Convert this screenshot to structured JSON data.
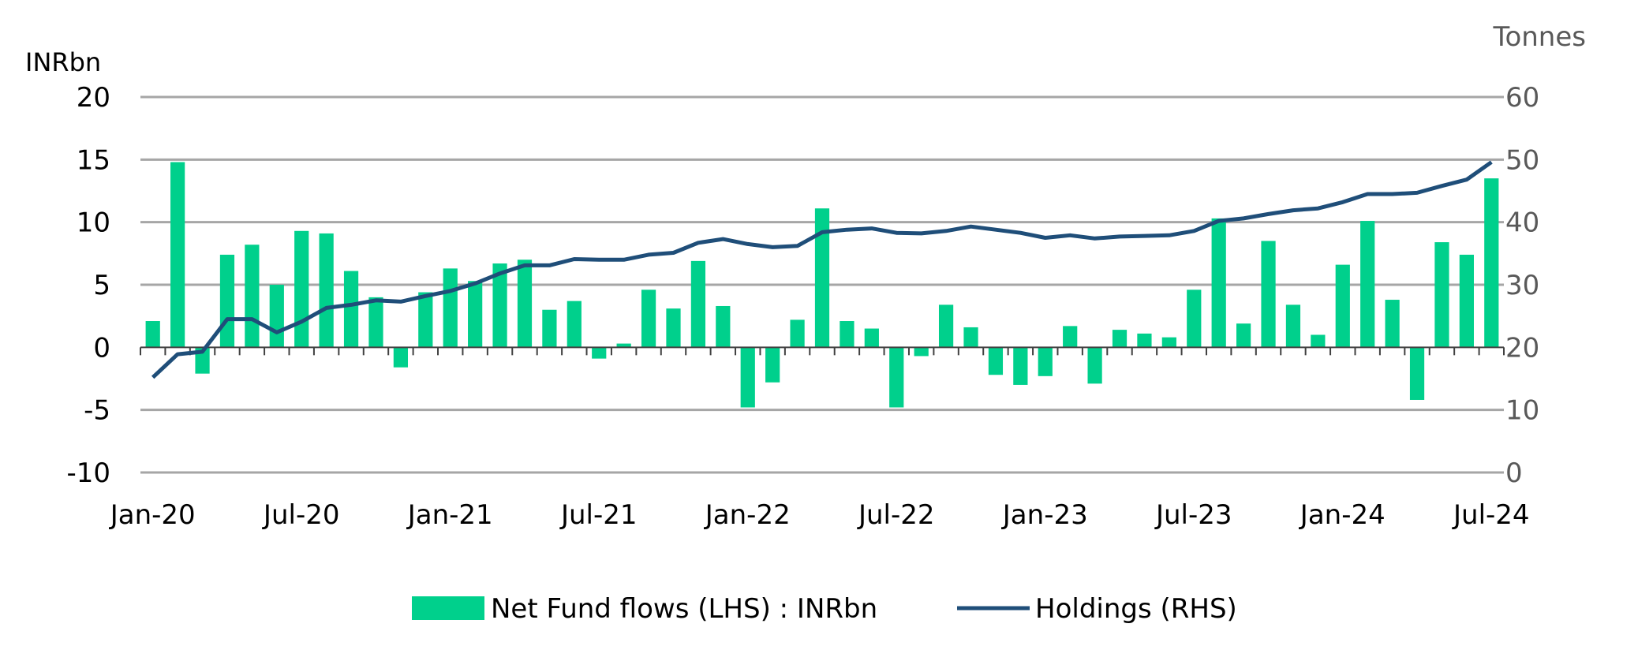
{
  "chart_data": {
    "type": "bar+line",
    "y_left_unit": "INRbn",
    "y_right_unit": "Tonnes",
    "y_left_ticks": [
      "20",
      "15",
      "10",
      "5",
      "0",
      "-5",
      "-10"
    ],
    "y_right_ticks": [
      "60",
      "50",
      "40",
      "30",
      "20",
      "10",
      "0"
    ],
    "ylim_left": [
      -10,
      20
    ],
    "ylim_right": [
      0,
      60
    ],
    "x_tick_labels": [
      "Jan-20",
      "Jul-20",
      "Jan-21",
      "Jul-21",
      "Jan-22",
      "Jul-22",
      "Jan-23",
      "Jul-23",
      "Jan-24",
      "Jul-24"
    ],
    "grid": true,
    "legend_position": "bottom",
    "colors": {
      "bars": "#00D08C",
      "line": "#1F4E79",
      "grid": "#A6A6A6"
    },
    "series": [
      {
        "name": "Net Fund flows (LHS) : INRbn",
        "kind": "bar",
        "axis": "left",
        "months": [
          "Jan-20",
          "Feb-20",
          "Mar-20",
          "Apr-20",
          "May-20",
          "Jun-20",
          "Jul-20",
          "Aug-20",
          "Sep-20",
          "Oct-20",
          "Nov-20",
          "Dec-20",
          "Jan-21",
          "Feb-21",
          "Mar-21",
          "Apr-21",
          "May-21",
          "Jun-21",
          "Jul-21",
          "Aug-21",
          "Sep-21",
          "Oct-21",
          "Nov-21",
          "Dec-21",
          "Jan-22",
          "Feb-22",
          "Mar-22",
          "Apr-22",
          "May-22",
          "Jun-22",
          "Jul-22",
          "Aug-22",
          "Sep-22",
          "Oct-22",
          "Nov-22",
          "Dec-22",
          "Jan-23",
          "Feb-23",
          "Mar-23",
          "Apr-23",
          "May-23",
          "Jun-23",
          "Jul-23",
          "Aug-23",
          "Sep-23",
          "Oct-23",
          "Nov-23",
          "Dec-23",
          "Jan-24",
          "Feb-24",
          "Mar-24",
          "Apr-24",
          "May-24",
          "Jun-24",
          "Jul-24"
        ],
        "values": [
          2.1,
          14.8,
          -2.1,
          7.4,
          8.2,
          5.0,
          9.3,
          9.1,
          6.1,
          4.0,
          -1.6,
          4.4,
          6.3,
          5.3,
          6.7,
          7.0,
          3.0,
          3.7,
          -0.9,
          0.3,
          4.6,
          3.1,
          6.9,
          3.3,
          -4.8,
          -2.8,
          2.2,
          11.1,
          2.1,
          1.5,
          -4.8,
          -0.7,
          3.4,
          1.6,
          -2.2,
          -3.0,
          -2.3,
          1.7,
          -2.9,
          1.4,
          1.1,
          0.8,
          4.6,
          10.3,
          1.9,
          8.5,
          3.4,
          1.0,
          6.6,
          10.1,
          3.8,
          -4.2,
          8.4,
          7.4,
          13.5
        ]
      },
      {
        "name": "Holdings (RHS)",
        "kind": "line",
        "axis": "right",
        "months": [
          "Jan-20",
          "Feb-20",
          "Mar-20",
          "Apr-20",
          "May-20",
          "Jun-20",
          "Jul-20",
          "Aug-20",
          "Sep-20",
          "Oct-20",
          "Nov-20",
          "Dec-20",
          "Jan-21",
          "Feb-21",
          "Mar-21",
          "Apr-21",
          "May-21",
          "Jun-21",
          "Jul-21",
          "Aug-21",
          "Sep-21",
          "Oct-21",
          "Nov-21",
          "Dec-21",
          "Jan-22",
          "Feb-22",
          "Mar-22",
          "Apr-22",
          "May-22",
          "Jun-22",
          "Jul-22",
          "Aug-22",
          "Sep-22",
          "Oct-22",
          "Nov-22",
          "Dec-22",
          "Jan-23",
          "Feb-23",
          "Mar-23",
          "Apr-23",
          "May-23",
          "Jun-23",
          "Jul-23",
          "Aug-23",
          "Sep-23",
          "Oct-23",
          "Nov-23",
          "Dec-23",
          "Jan-24",
          "Feb-24",
          "Mar-24",
          "Apr-24",
          "May-24",
          "Jun-24",
          "Jul-24"
        ],
        "values": [
          15.2,
          18.9,
          19.3,
          24.5,
          24.5,
          22.4,
          24.1,
          26.3,
          26.8,
          27.5,
          27.3,
          28.2,
          29.0,
          30.2,
          31.8,
          33.1,
          33.1,
          34.1,
          34.0,
          34.0,
          34.8,
          35.1,
          36.7,
          37.3,
          36.5,
          36.0,
          36.2,
          38.4,
          38.8,
          39.0,
          38.3,
          38.2,
          38.6,
          39.3,
          38.8,
          38.3,
          37.5,
          37.9,
          37.4,
          37.7,
          37.8,
          37.9,
          38.6,
          40.2,
          40.6,
          41.3,
          41.9,
          42.2,
          43.2,
          44.5,
          44.5,
          44.7,
          45.8,
          46.8,
          49.6
        ]
      }
    ]
  }
}
